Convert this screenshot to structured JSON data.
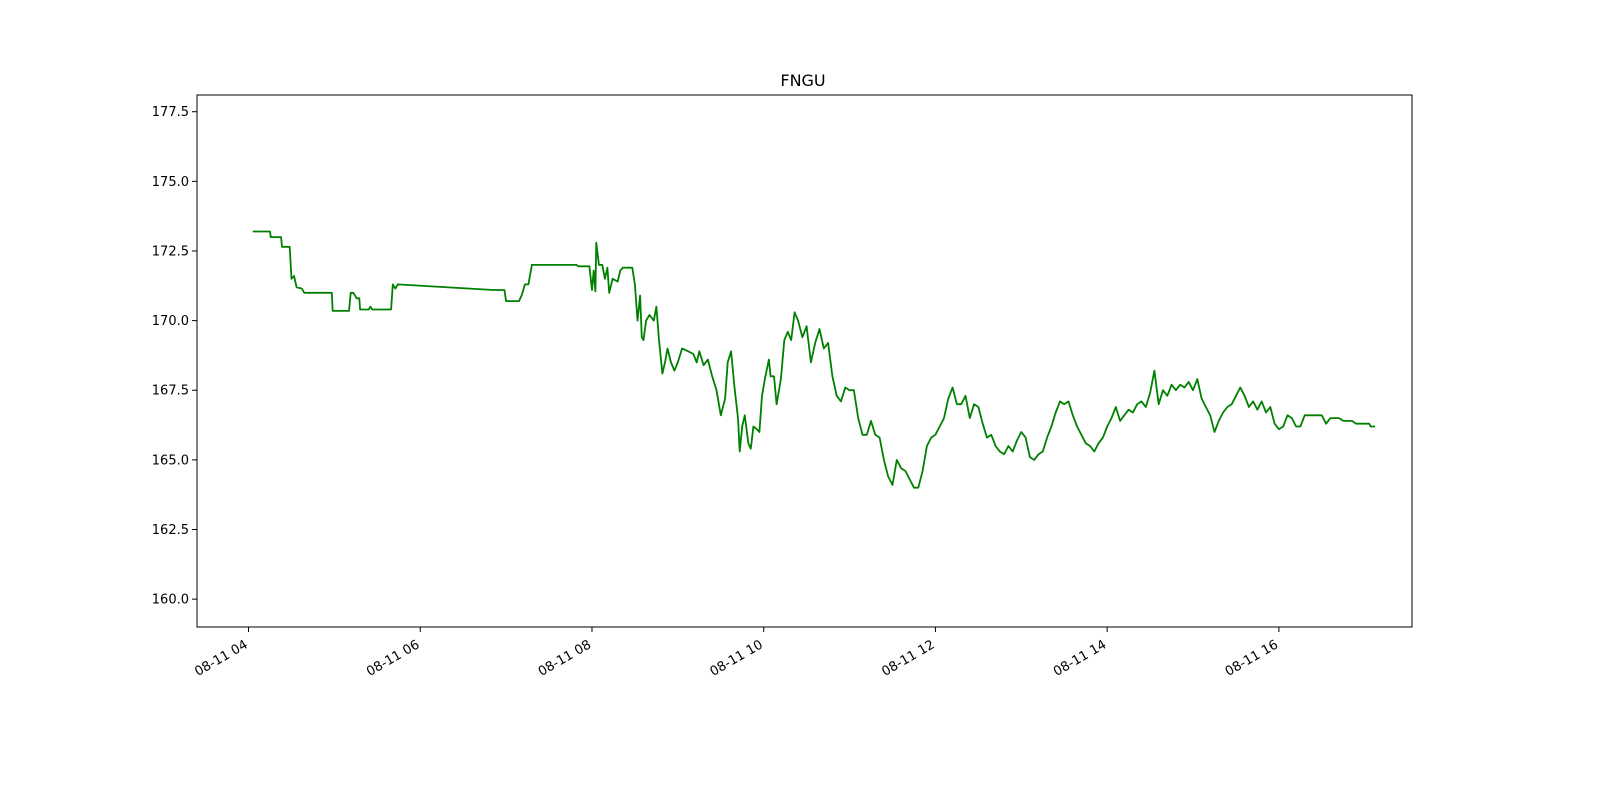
{
  "chart_data": {
    "type": "line",
    "title": "FNGU",
    "xlabel": "",
    "ylabel": "",
    "x_tick_labels": [
      "08-11 04",
      "08-11 06",
      "08-11 08",
      "08-11 10",
      "08-11 12",
      "08-11 14",
      "08-11 16"
    ],
    "x_tick_hours": [
      4,
      6,
      8,
      10,
      12,
      14,
      16
    ],
    "xlim_hours": [
      3.4,
      17.55
    ],
    "y_tick_labels": [
      "160.0",
      "162.5",
      "165.0",
      "167.5",
      "170.0",
      "172.5",
      "175.0",
      "177.5"
    ],
    "y_ticks": [
      160.0,
      162.5,
      165.0,
      167.5,
      170.0,
      172.5,
      175.0,
      177.5
    ],
    "ylim": [
      159.0,
      178.1
    ],
    "grid": false,
    "series": [
      {
        "color": "#008000",
        "points": [
          [
            4.05,
            173.2
          ],
          [
            4.25,
            173.2
          ],
          [
            4.26,
            173.0
          ],
          [
            4.38,
            173.0
          ],
          [
            4.39,
            172.65
          ],
          [
            4.48,
            172.65
          ],
          [
            4.5,
            171.5
          ],
          [
            4.53,
            171.6
          ],
          [
            4.56,
            171.2
          ],
          [
            4.62,
            171.15
          ],
          [
            4.65,
            171.0
          ],
          [
            4.97,
            171.0
          ],
          [
            4.98,
            170.35
          ],
          [
            5.17,
            170.35
          ],
          [
            5.19,
            171.0
          ],
          [
            5.22,
            171.0
          ],
          [
            5.26,
            170.8
          ],
          [
            5.29,
            170.8
          ],
          [
            5.3,
            170.4
          ],
          [
            5.4,
            170.4
          ],
          [
            5.42,
            170.5
          ],
          [
            5.44,
            170.4
          ],
          [
            5.66,
            170.4
          ],
          [
            5.68,
            171.3
          ],
          [
            5.71,
            171.15
          ],
          [
            5.74,
            171.3
          ],
          [
            6.85,
            171.1
          ],
          [
            6.98,
            171.1
          ],
          [
            7.0,
            170.7
          ],
          [
            7.15,
            170.7
          ],
          [
            7.18,
            170.9
          ],
          [
            7.22,
            171.3
          ],
          [
            7.26,
            171.3
          ],
          [
            7.3,
            172.0
          ],
          [
            7.82,
            172.0
          ],
          [
            7.84,
            171.95
          ],
          [
            7.97,
            171.95
          ],
          [
            8.0,
            171.1
          ],
          [
            8.02,
            171.8
          ],
          [
            8.04,
            171.05
          ],
          [
            8.05,
            172.8
          ],
          [
            8.08,
            172.0
          ],
          [
            8.12,
            172.0
          ],
          [
            8.15,
            171.5
          ],
          [
            8.18,
            171.9
          ],
          [
            8.2,
            171.0
          ],
          [
            8.24,
            171.5
          ],
          [
            8.3,
            171.4
          ],
          [
            8.33,
            171.8
          ],
          [
            8.36,
            171.9
          ],
          [
            8.47,
            171.9
          ],
          [
            8.5,
            171.3
          ],
          [
            8.53,
            170.0
          ],
          [
            8.56,
            170.9
          ],
          [
            8.58,
            169.4
          ],
          [
            8.6,
            169.3
          ],
          [
            8.63,
            170.0
          ],
          [
            8.67,
            170.2
          ],
          [
            8.72,
            170.0
          ],
          [
            8.75,
            170.5
          ],
          [
            8.78,
            169.3
          ],
          [
            8.82,
            168.1
          ],
          [
            8.85,
            168.5
          ],
          [
            8.88,
            169.0
          ],
          [
            8.92,
            168.5
          ],
          [
            8.96,
            168.2
          ],
          [
            9.0,
            168.5
          ],
          [
            9.05,
            169.0
          ],
          [
            9.12,
            168.9
          ],
          [
            9.18,
            168.8
          ],
          [
            9.22,
            168.5
          ],
          [
            9.25,
            168.9
          ],
          [
            9.3,
            168.4
          ],
          [
            9.35,
            168.6
          ],
          [
            9.4,
            168.0
          ],
          [
            9.45,
            167.5
          ],
          [
            9.5,
            166.6
          ],
          [
            9.55,
            167.2
          ],
          [
            9.58,
            168.5
          ],
          [
            9.62,
            168.9
          ],
          [
            9.66,
            167.6
          ],
          [
            9.7,
            166.5
          ],
          [
            9.72,
            165.3
          ],
          [
            9.75,
            166.2
          ],
          [
            9.78,
            166.6
          ],
          [
            9.82,
            165.6
          ],
          [
            9.85,
            165.4
          ],
          [
            9.88,
            166.2
          ],
          [
            9.92,
            166.1
          ],
          [
            9.95,
            166.0
          ],
          [
            9.98,
            167.3
          ],
          [
            10.02,
            168.0
          ],
          [
            10.06,
            168.6
          ],
          [
            10.08,
            168.0
          ],
          [
            10.12,
            168.0
          ],
          [
            10.15,
            167.0
          ],
          [
            10.2,
            167.9
          ],
          [
            10.24,
            169.3
          ],
          [
            10.28,
            169.6
          ],
          [
            10.32,
            169.3
          ],
          [
            10.36,
            170.3
          ],
          [
            10.4,
            170.0
          ],
          [
            10.45,
            169.4
          ],
          [
            10.5,
            169.8
          ],
          [
            10.55,
            168.5
          ],
          [
            10.6,
            169.2
          ],
          [
            10.65,
            169.7
          ],
          [
            10.7,
            169.0
          ],
          [
            10.75,
            169.2
          ],
          [
            10.8,
            168.0
          ],
          [
            10.85,
            167.3
          ],
          [
            10.9,
            167.1
          ],
          [
            10.95,
            167.6
          ],
          [
            11.0,
            167.5
          ],
          [
            11.05,
            167.5
          ],
          [
            11.1,
            166.5
          ],
          [
            11.15,
            165.9
          ],
          [
            11.2,
            165.9
          ],
          [
            11.25,
            166.4
          ],
          [
            11.3,
            165.9
          ],
          [
            11.35,
            165.8
          ],
          [
            11.4,
            165.0
          ],
          [
            11.45,
            164.4
          ],
          [
            11.5,
            164.1
          ],
          [
            11.55,
            165.0
          ],
          [
            11.6,
            164.7
          ],
          [
            11.65,
            164.6
          ],
          [
            11.7,
            164.3
          ],
          [
            11.75,
            164.0
          ],
          [
            11.8,
            164.0
          ],
          [
            11.85,
            164.6
          ],
          [
            11.9,
            165.5
          ],
          [
            11.95,
            165.8
          ],
          [
            12.0,
            165.9
          ],
          [
            12.05,
            166.2
          ],
          [
            12.1,
            166.5
          ],
          [
            12.15,
            167.2
          ],
          [
            12.2,
            167.6
          ],
          [
            12.25,
            167.0
          ],
          [
            12.3,
            167.0
          ],
          [
            12.35,
            167.3
          ],
          [
            12.4,
            166.5
          ],
          [
            12.45,
            167.0
          ],
          [
            12.5,
            166.9
          ],
          [
            12.55,
            166.3
          ],
          [
            12.6,
            165.8
          ],
          [
            12.65,
            165.9
          ],
          [
            12.7,
            165.5
          ],
          [
            12.75,
            165.3
          ],
          [
            12.8,
            165.2
          ],
          [
            12.85,
            165.5
          ],
          [
            12.9,
            165.3
          ],
          [
            12.95,
            165.7
          ],
          [
            13.0,
            166.0
          ],
          [
            13.05,
            165.8
          ],
          [
            13.1,
            165.1
          ],
          [
            13.15,
            165.0
          ],
          [
            13.2,
            165.2
          ],
          [
            13.25,
            165.3
          ],
          [
            13.3,
            165.8
          ],
          [
            13.35,
            166.2
          ],
          [
            13.4,
            166.7
          ],
          [
            13.45,
            167.1
          ],
          [
            13.5,
            167.0
          ],
          [
            13.55,
            167.1
          ],
          [
            13.6,
            166.6
          ],
          [
            13.65,
            166.2
          ],
          [
            13.7,
            165.9
          ],
          [
            13.75,
            165.6
          ],
          [
            13.8,
            165.5
          ],
          [
            13.85,
            165.3
          ],
          [
            13.9,
            165.6
          ],
          [
            13.95,
            165.8
          ],
          [
            14.0,
            166.2
          ],
          [
            14.05,
            166.5
          ],
          [
            14.1,
            166.9
          ],
          [
            14.15,
            166.4
          ],
          [
            14.2,
            166.6
          ],
          [
            14.25,
            166.8
          ],
          [
            14.3,
            166.7
          ],
          [
            14.35,
            167.0
          ],
          [
            14.4,
            167.1
          ],
          [
            14.45,
            166.9
          ],
          [
            14.5,
            167.4
          ],
          [
            14.55,
            168.2
          ],
          [
            14.6,
            167.0
          ],
          [
            14.65,
            167.5
          ],
          [
            14.7,
            167.3
          ],
          [
            14.75,
            167.7
          ],
          [
            14.8,
            167.5
          ],
          [
            14.85,
            167.7
          ],
          [
            14.9,
            167.6
          ],
          [
            14.95,
            167.8
          ],
          [
            15.0,
            167.5
          ],
          [
            15.05,
            167.9
          ],
          [
            15.1,
            167.2
          ],
          [
            15.15,
            166.9
          ],
          [
            15.2,
            166.6
          ],
          [
            15.25,
            166.0
          ],
          [
            15.3,
            166.4
          ],
          [
            15.35,
            166.7
          ],
          [
            15.4,
            166.9
          ],
          [
            15.45,
            167.0
          ],
          [
            15.5,
            167.3
          ],
          [
            15.55,
            167.6
          ],
          [
            15.6,
            167.3
          ],
          [
            15.65,
            166.9
          ],
          [
            15.7,
            167.1
          ],
          [
            15.75,
            166.8
          ],
          [
            15.8,
            167.1
          ],
          [
            15.85,
            166.7
          ],
          [
            15.9,
            166.9
          ],
          [
            15.95,
            166.3
          ],
          [
            16.0,
            166.1
          ],
          [
            16.05,
            166.2
          ],
          [
            16.1,
            166.6
          ],
          [
            16.15,
            166.5
          ],
          [
            16.2,
            166.2
          ],
          [
            16.25,
            166.2
          ],
          [
            16.3,
            166.6
          ],
          [
            16.5,
            166.6
          ],
          [
            16.55,
            166.3
          ],
          [
            16.6,
            166.5
          ],
          [
            16.7,
            166.5
          ],
          [
            16.75,
            166.4
          ],
          [
            16.85,
            166.4
          ],
          [
            16.9,
            166.3
          ],
          [
            17.05,
            166.3
          ],
          [
            17.07,
            166.2
          ],
          [
            17.12,
            166.2
          ]
        ]
      }
    ]
  }
}
